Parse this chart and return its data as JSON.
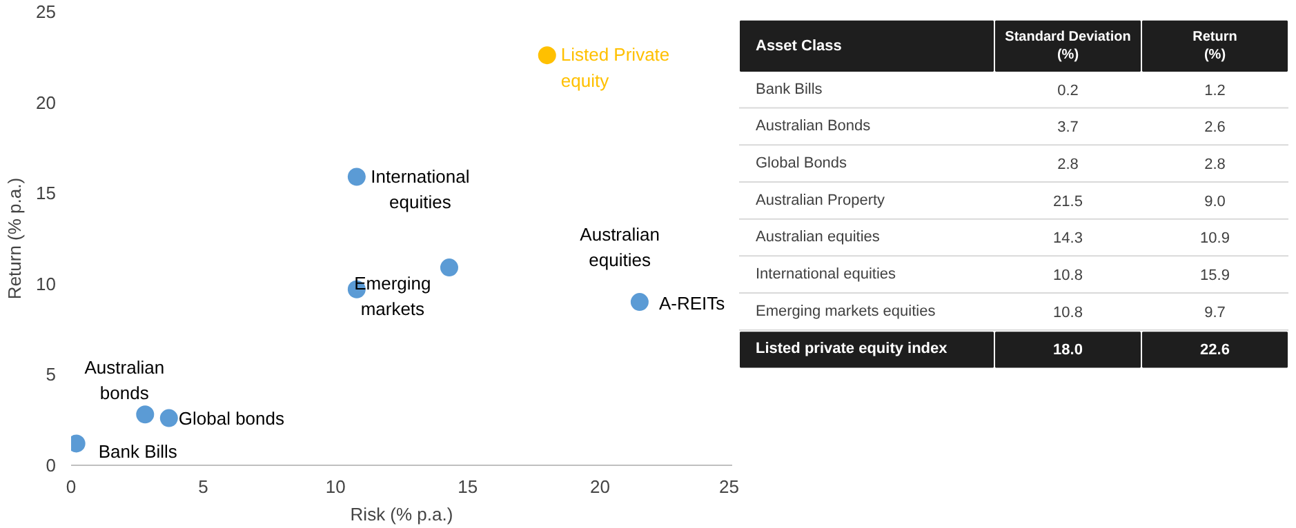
{
  "chart_data": [
    {
      "type": "scatter",
      "xlabel": "Risk (% p.a.)",
      "ylabel": "Return (% p.a.)",
      "xlim": [
        0,
        25
      ],
      "ylim": [
        0,
        25
      ],
      "xticks": [
        0,
        5,
        10,
        15,
        20,
        25
      ],
      "yticks": [
        0,
        5,
        10,
        15,
        20,
        25
      ],
      "grid": false,
      "marker": "circle",
      "x": [
        0.2,
        2.8,
        3.7,
        10.8,
        10.8,
        14.3,
        21.5,
        18.0
      ],
      "values": [
        1.2,
        2.8,
        2.6,
        9.7,
        15.9,
        10.9,
        9.0,
        22.6
      ],
      "colors": [
        "#5b9bd5",
        "#5b9bd5",
        "#5b9bd5",
        "#5b9bd5",
        "#5b9bd5",
        "#5b9bd5",
        "#5b9bd5",
        "#ffc000"
      ],
      "annotations": [
        {
          "text": "Bank Bills",
          "x": 0.2,
          "y": 1.2
        },
        {
          "text": "Australian\nbonds",
          "x": 2.8,
          "y": 2.8
        },
        {
          "text": "Global bonds",
          "x": 3.7,
          "y": 2.6
        },
        {
          "text": "Emerging\nmarkets",
          "x": 10.8,
          "y": 9.7
        },
        {
          "text": "International\nequities",
          "x": 10.8,
          "y": 15.9
        },
        "Australian\nequities",
        {
          "text": "A-REITs",
          "x": 21.5,
          "y": 9.0
        },
        {
          "text": "Listed Private\nequity",
          "x": 18.0,
          "y": 22.6
        }
      ]
    },
    {
      "type": "heatmap",
      "ylabel": "Asset Class",
      "data_labels": true,
      "categories": [
        "Standard Deviation\n(%)",
        "Return\n(%)"
      ],
      "y_categories": [
        "Bank Bills",
        "Australian Bonds",
        "Global Bonds",
        "Australian Property",
        "Australian equities",
        "International equities",
        "Emerging markets equities",
        "Listed private equity index"
      ],
      "cells": [
        [
          0.2,
          1.2
        ],
        [
          3.7,
          2.6
        ],
        [
          2.8,
          2.8
        ],
        [
          21.5,
          9.0
        ],
        [
          14.3,
          10.9
        ],
        [
          10.8,
          15.9
        ],
        [
          10.8,
          9.7
        ],
        [
          18.0,
          22.6
        ]
      ],
      "cell_labels": [
        [
          "0.2",
          "1.2"
        ],
        [
          "3.7",
          "2.6"
        ],
        [
          "2.8",
          "2.8"
        ],
        [
          "21.5",
          "9.0"
        ],
        [
          "14.3",
          "10.9"
        ],
        [
          "10.8",
          "15.9"
        ],
        [
          "10.8",
          "9.7"
        ],
        [
          "18.0",
          "22.6"
        ]
      ]
    }
  ]
}
